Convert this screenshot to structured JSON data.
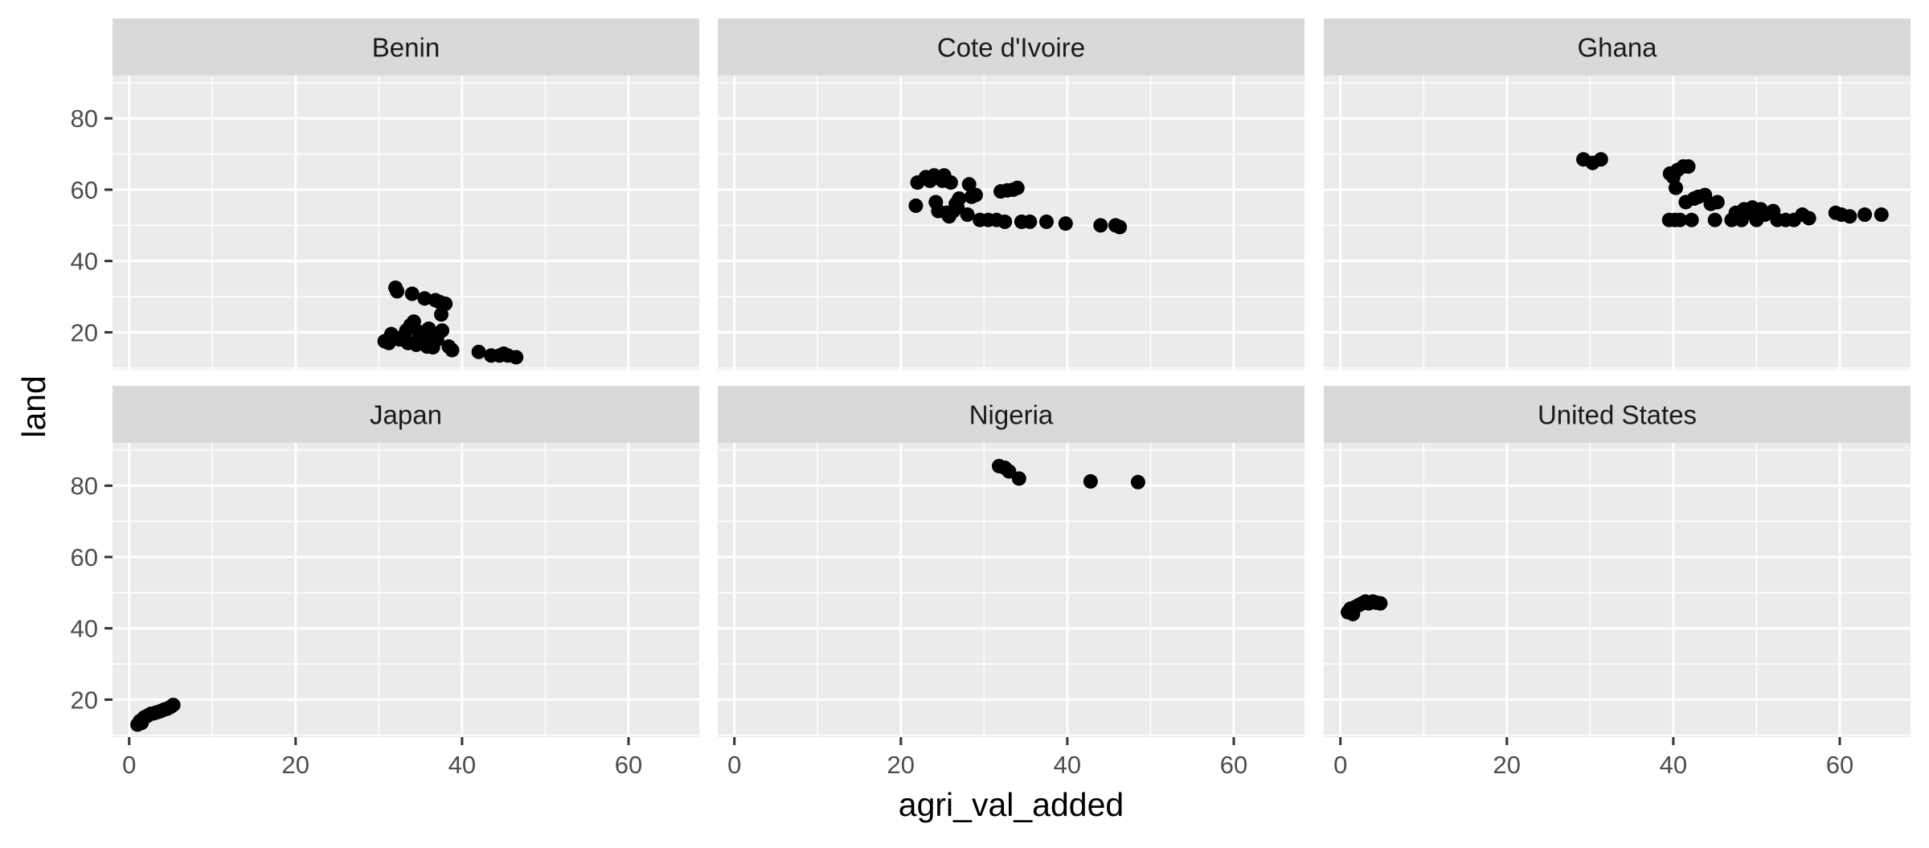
{
  "chart_data": {
    "type": "scatter",
    "xlabel": "agri_val_added",
    "ylabel": "land",
    "xlim": [
      -2,
      68.5
    ],
    "ylim": [
      9.5,
      92
    ],
    "x_ticks": [
      0,
      20,
      40,
      60
    ],
    "y_ticks": [
      20,
      40,
      60,
      80
    ],
    "x_tick_labels": [
      "0",
      "20",
      "40",
      "60"
    ],
    "y_tick_labels": [
      "20",
      "40",
      "60",
      "80"
    ],
    "grid": true,
    "facet_layout": {
      "rows": 2,
      "cols": 3
    },
    "colors": {
      "panel_bg": "#ebebeb",
      "strip_bg": "#d9d9d9",
      "grid": "#ffffff",
      "point": "#000000",
      "axis_text": "#4d4d4d",
      "strip_text": "#1a1a1a",
      "title_text": "#000000"
    },
    "facets": [
      {
        "name": "Benin",
        "points": [
          [
            30.7,
            17.5
          ],
          [
            31.2,
            17.0
          ],
          [
            31.5,
            19.5
          ],
          [
            32.0,
            32.5
          ],
          [
            32.2,
            31.5
          ],
          [
            32.5,
            18.0
          ],
          [
            33.0,
            19.0
          ],
          [
            33.3,
            20.5
          ],
          [
            33.5,
            17.0
          ],
          [
            33.8,
            22.0
          ],
          [
            34.0,
            30.8
          ],
          [
            34.2,
            23.0
          ],
          [
            34.5,
            16.5
          ],
          [
            34.8,
            18.5
          ],
          [
            35.0,
            20.0
          ],
          [
            35.5,
            29.5
          ],
          [
            35.8,
            16.0
          ],
          [
            36.0,
            21.0
          ],
          [
            36.2,
            19.0
          ],
          [
            36.5,
            15.8
          ],
          [
            36.8,
            29.0
          ],
          [
            37.0,
            18.0
          ],
          [
            37.3,
            28.5
          ],
          [
            37.5,
            25.0
          ],
          [
            37.6,
            20.5
          ],
          [
            38.0,
            28.0
          ],
          [
            38.4,
            16.0
          ],
          [
            38.8,
            15.0
          ],
          [
            42.0,
            14.5
          ],
          [
            43.5,
            13.5
          ],
          [
            44.5,
            13.5
          ],
          [
            45.0,
            14.0
          ],
          [
            45.5,
            13.5
          ],
          [
            46.5,
            13.0
          ]
        ]
      },
      {
        "name": "Cote d'Ivoire",
        "points": [
          [
            21.8,
            55.5
          ],
          [
            22.0,
            62.0
          ],
          [
            23.0,
            63.5
          ],
          [
            23.5,
            62.5
          ],
          [
            24.0,
            64.0
          ],
          [
            24.2,
            56.5
          ],
          [
            24.5,
            54.0
          ],
          [
            24.8,
            63.0
          ],
          [
            25.0,
            62.5
          ],
          [
            25.2,
            64.0
          ],
          [
            25.5,
            53.5
          ],
          [
            25.8,
            52.5
          ],
          [
            26.0,
            62.0
          ],
          [
            26.3,
            54.0
          ],
          [
            26.6,
            56.0
          ],
          [
            26.8,
            55.0
          ],
          [
            27.0,
            57.5
          ],
          [
            28.0,
            53.0
          ],
          [
            28.2,
            61.5
          ],
          [
            28.5,
            58.0
          ],
          [
            29.0,
            58.5
          ],
          [
            29.5,
            51.5
          ],
          [
            30.5,
            51.5
          ],
          [
            31.5,
            51.5
          ],
          [
            32.0,
            59.5
          ],
          [
            32.5,
            51.0
          ],
          [
            32.8,
            59.8
          ],
          [
            33.5,
            60.0
          ],
          [
            34.0,
            60.5
          ],
          [
            34.5,
            51.0
          ],
          [
            35.5,
            51.0
          ],
          [
            37.5,
            51.0
          ],
          [
            39.8,
            50.5
          ],
          [
            44.0,
            50.0
          ],
          [
            45.8,
            50.0
          ],
          [
            46.3,
            49.5
          ]
        ]
      },
      {
        "name": "Ghana",
        "points": [
          [
            29.2,
            68.5
          ],
          [
            30.3,
            67.5
          ],
          [
            31.3,
            68.5
          ],
          [
            39.5,
            51.5
          ],
          [
            39.6,
            64.5
          ],
          [
            40.0,
            63.5
          ],
          [
            40.2,
            51.5
          ],
          [
            40.3,
            60.5
          ],
          [
            40.5,
            65.5
          ],
          [
            40.8,
            51.5
          ],
          [
            41.2,
            66.5
          ],
          [
            41.5,
            56.5
          ],
          [
            41.8,
            66.5
          ],
          [
            42.2,
            51.5
          ],
          [
            42.5,
            57.5
          ],
          [
            43.0,
            58.0
          ],
          [
            43.8,
            58.5
          ],
          [
            44.5,
            56.0
          ],
          [
            45.0,
            51.5
          ],
          [
            45.3,
            56.5
          ],
          [
            47.0,
            51.5
          ],
          [
            47.5,
            53.5
          ],
          [
            48.2,
            51.5
          ],
          [
            48.5,
            54.5
          ],
          [
            49.2,
            53.5
          ],
          [
            49.5,
            55.0
          ],
          [
            50.0,
            51.5
          ],
          [
            50.5,
            54.5
          ],
          [
            51.0,
            53.0
          ],
          [
            52.0,
            54.0
          ],
          [
            52.5,
            51.5
          ],
          [
            53.5,
            51.5
          ],
          [
            54.5,
            51.5
          ],
          [
            55.5,
            53.0
          ],
          [
            56.3,
            52.0
          ],
          [
            59.5,
            53.5
          ],
          [
            60.2,
            53.0
          ],
          [
            61.2,
            52.5
          ],
          [
            63.0,
            53.0
          ],
          [
            65.0,
            53.0
          ]
        ]
      },
      {
        "name": "Japan",
        "points": [
          [
            1.0,
            13.0
          ],
          [
            1.3,
            14.0
          ],
          [
            1.5,
            13.5
          ],
          [
            1.8,
            15.0
          ],
          [
            2.2,
            15.5
          ],
          [
            2.6,
            16.0
          ],
          [
            3.0,
            16.2
          ],
          [
            3.4,
            16.5
          ],
          [
            3.8,
            16.8
          ],
          [
            4.2,
            17.2
          ],
          [
            4.6,
            17.5
          ],
          [
            5.0,
            18.0
          ],
          [
            5.3,
            18.5
          ]
        ]
      },
      {
        "name": "Nigeria",
        "points": [
          [
            31.8,
            85.5
          ],
          [
            32.5,
            85.0
          ],
          [
            33.0,
            84.0
          ],
          [
            34.2,
            82.0
          ],
          [
            42.8,
            81.2
          ],
          [
            48.5,
            81.0
          ]
        ]
      },
      {
        "name": "United States",
        "points": [
          [
            0.9,
            44.5
          ],
          [
            1.2,
            45.5
          ],
          [
            1.5,
            44.0
          ],
          [
            1.8,
            46.0
          ],
          [
            2.2,
            46.5
          ],
          [
            2.6,
            47.0
          ],
          [
            3.0,
            47.5
          ],
          [
            3.4,
            47.0
          ],
          [
            3.9,
            47.5
          ],
          [
            4.3,
            47.2
          ],
          [
            4.8,
            47.0
          ]
        ]
      }
    ]
  }
}
